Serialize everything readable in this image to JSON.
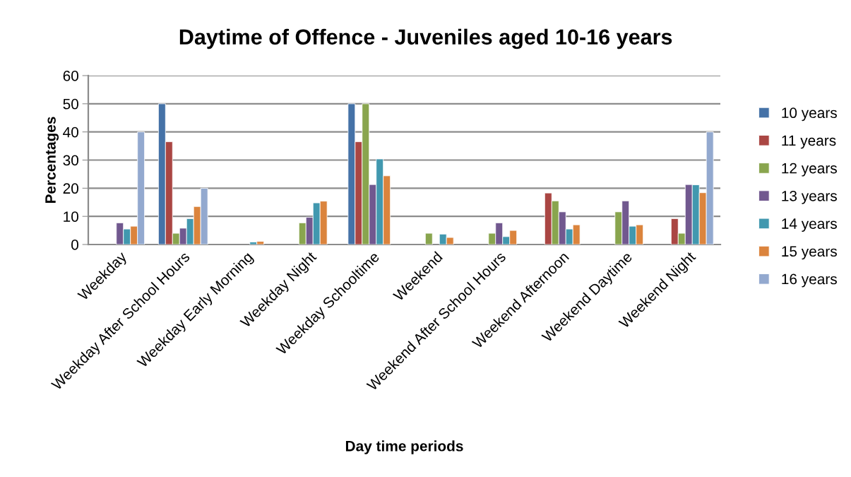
{
  "chart_data": {
    "type": "bar",
    "title": "Daytime of Offence - Juveniles aged 10-16 years",
    "xlabel": "Day time periods",
    "ylabel": "Percentages",
    "categories": [
      "Weekday",
      "Weekday After School Hours",
      "Weekday Early Morning",
      "Weekday Night",
      "Weekday Schooltime",
      "Weekend",
      "Weekend After School Hours",
      "Weekend Afternoon",
      "Weekend Daytime",
      "Weekend Night"
    ],
    "series": [
      {
        "name": "10 years",
        "color": "#4572a7",
        "values": [
          null,
          50,
          null,
          null,
          50,
          null,
          null,
          null,
          null,
          null
        ]
      },
      {
        "name": "11 years",
        "color": "#aa4643",
        "values": [
          null,
          36.5,
          null,
          null,
          36.5,
          null,
          null,
          18.3,
          null,
          9.2
        ]
      },
      {
        "name": "12 years",
        "color": "#89a54e",
        "values": [
          null,
          4.0,
          null,
          7.7,
          50,
          4.0,
          4.0,
          15.5,
          11.6,
          4.0
        ]
      },
      {
        "name": "13 years",
        "color": "#71588f",
        "values": [
          7.7,
          5.8,
          null,
          9.7,
          21.3,
          null,
          7.7,
          11.6,
          15.5,
          21.3
        ]
      },
      {
        "name": "14 years",
        "color": "#4198af",
        "values": [
          5.5,
          9.2,
          0.9,
          14.8,
          30.4,
          3.7,
          2.8,
          5.5,
          6.5,
          21.2
        ]
      },
      {
        "name": "15 years",
        "color": "#db843d",
        "values": [
          6.5,
          13.5,
          1.1,
          15.4,
          24.4,
          2.5,
          5.0,
          7.0,
          7.0,
          18.4
        ]
      },
      {
        "name": "16 years",
        "color": "#93a9cf",
        "values": [
          40,
          20,
          null,
          null,
          null,
          null,
          null,
          null,
          null,
          40
        ]
      }
    ],
    "ylim": [
      0,
      60
    ],
    "yticks": [
      0,
      10,
      20,
      30,
      40,
      50,
      60
    ],
    "grid": "y",
    "legend": "right"
  }
}
